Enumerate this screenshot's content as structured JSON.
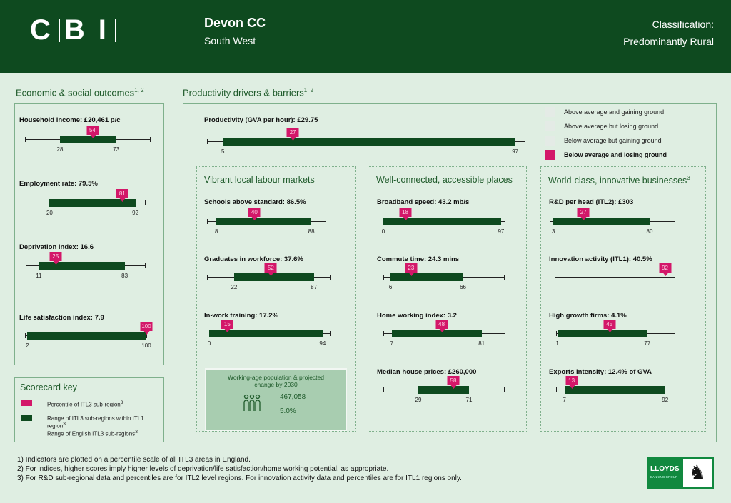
{
  "header": {
    "logo": "CBI",
    "area": "Devon CC",
    "region": "South West",
    "classification_label": "Classification:",
    "classification": "Predominantly Rural"
  },
  "colors": {
    "brand_green": "#0e4a1f",
    "marker_pink": "#d31769",
    "background": "#dfeee2"
  },
  "sections": {
    "outcomes": "Economic & social outcomes",
    "outcomes_sup": "1, 2",
    "drivers": "Productivity drivers & barriers",
    "drivers_sup": "1, 2",
    "labour": "Vibrant local labour markets",
    "places": "Well-connected, accessible places",
    "business": "World-class, innovative businesses",
    "business_sup": "3"
  },
  "legend": [
    {
      "label": "Above average and gaining ground",
      "active": false
    },
    {
      "label": "Above average but losing ground",
      "active": false
    },
    {
      "label": "Below average but gaining ground",
      "active": false
    },
    {
      "label": "Below average and losing ground",
      "active": true
    }
  ],
  "indicators": [
    {
      "id": "household",
      "label": "Household income: £20,461 p/c",
      "percentile": 54,
      "range": [
        28,
        73
      ]
    },
    {
      "id": "employment",
      "label": "Employment rate: 79.5%",
      "percentile": 81,
      "range": [
        20,
        92
      ]
    },
    {
      "id": "deprivation",
      "label": "Deprivation index: 16.6",
      "percentile": 25,
      "range": [
        11,
        83
      ]
    },
    {
      "id": "life",
      "label": "Life satisfaction index: 7.9",
      "percentile": 100,
      "range": [
        2,
        100
      ]
    },
    {
      "id": "productivity",
      "label": "Productivity (GVA per hour): £29.75",
      "percentile": 27,
      "range": [
        5,
        97
      ]
    },
    {
      "id": "schools",
      "label": "Schools above standard: 86.5%",
      "percentile": 40,
      "range": [
        8,
        88
      ]
    },
    {
      "id": "graduates",
      "label": "Graduates in workforce: 37.6%",
      "percentile": 52,
      "range": [
        22,
        87
      ]
    },
    {
      "id": "training",
      "label": "In-work training: 17.2%",
      "percentile": 15,
      "range": [
        0,
        94
      ]
    },
    {
      "id": "broadband",
      "label": "Broadband speed: 43.2 mb/s",
      "percentile": 18,
      "range": [
        0,
        97
      ]
    },
    {
      "id": "commute",
      "label": "Commute time: 24.3 mins",
      "percentile": 23,
      "range": [
        6,
        66
      ]
    },
    {
      "id": "homeworking",
      "label": "Home working index: 3.2",
      "percentile": 48,
      "range": [
        7,
        81
      ]
    },
    {
      "id": "house",
      "label": "Median house prices: £260,000",
      "percentile": 58,
      "range": [
        29,
        71
      ]
    },
    {
      "id": "rnd",
      "label": "R&D per head (ITL2): £303",
      "percentile": 27,
      "range": [
        3,
        80
      ]
    },
    {
      "id": "innovation",
      "label": "Innovation activity (ITL1): 40.5%",
      "percentile": 92,
      "range": null
    },
    {
      "id": "highgrowth",
      "label": "High growth firms: 4.1%",
      "percentile": 45,
      "range": [
        1,
        77
      ]
    },
    {
      "id": "exports",
      "label": "Exports intensity: 12.4% of GVA",
      "percentile": 13,
      "range": [
        7,
        92
      ]
    }
  ],
  "population": {
    "title": "Working-age population & projected change by 2030",
    "value": "467,058",
    "change": "5.0%",
    "icon": "people-icon"
  },
  "key": {
    "title": "Scorecard key",
    "items": [
      "Percentile of ITL3 sub-region",
      "Range of ITL3 sub-regions within ITL1 region",
      "Range of English ITL3 sub-regions"
    ],
    "sup": "3"
  },
  "footnotes": [
    "1) Indicators are plotted on a percentile scale of all ITL3 areas in England.",
    "2) For indices, higher scores imply higher levels of deprivation/life satisfaction/home working potential, as appropriate.",
    "3) For R&D sub-regional data and percentiles are for ITL2 level regions. For innovation activity data and percentiles are for ITL1 regions only."
  ],
  "sponsor": {
    "name": "LLOYDS",
    "sub": "BANKING GROUP"
  }
}
